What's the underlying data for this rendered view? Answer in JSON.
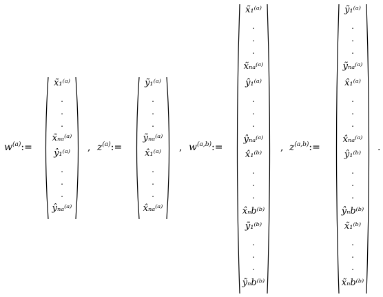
{
  "lhs": [
    {
      "var": "w",
      "sup": "(a)",
      "op": ":="
    },
    {
      "var": "z",
      "sup": "(a)",
      "op": ":="
    },
    {
      "var": "w",
      "sup": "(a,b)",
      "op": ":="
    },
    {
      "var": "z",
      "sup": "(a,b)",
      "op": ":="
    }
  ],
  "separator": ",",
  "period": ".",
  "vectors": [
    {
      "entries": [
        "x̃₁⁽ᵃ⁾",
        "x̃ₙₐ⁽ᵃ⁾",
        "ŷ₁⁽ᵃ⁾",
        "ŷₙₐ⁽ᵃ⁾"
      ]
    },
    {
      "entries": [
        "ỹ₁⁽ᵃ⁾",
        "ỹₙₐ⁽ᵃ⁾",
        "x̂₁⁽ᵃ⁾",
        "x̂ₙₐ⁽ᵃ⁾"
      ]
    },
    {
      "entries": [
        "x̃₁⁽ᵃ⁾",
        "x̃ₙₐ⁽ᵃ⁾",
        "ŷ₁⁽ᵃ⁾",
        "ŷₙₐ⁽ᵃ⁾",
        "x̂₁⁽ᵇ⁾",
        "x̂ₙb⁽ᵇ⁾",
        "ỹ₁⁽ᵇ⁾",
        "ỹₙb⁽ᵇ⁾"
      ]
    },
    {
      "entries": [
        "ỹ₁⁽ᵃ⁾",
        "ỹₙₐ⁽ᵃ⁾",
        "x̂₁⁽ᵃ⁾",
        "x̂ₙₐ⁽ᵃ⁾",
        "ŷ₁⁽ᵇ⁾",
        "ŷₙb⁽ᵇ⁾",
        "x̃₁⁽ᵇ⁾",
        "x̃ₙb⁽ᵇ⁾"
      ]
    }
  ]
}
